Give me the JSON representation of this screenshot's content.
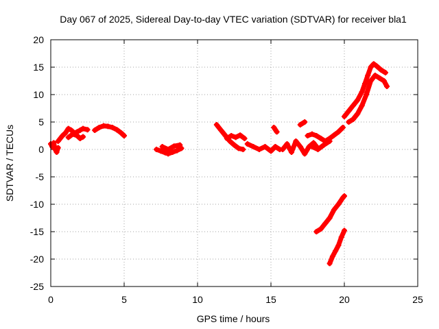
{
  "chart_data": {
    "type": "scatter",
    "title": "Day 067 of 2025, Sidereal Day-to-day VTEC variation (SDTVAR) for receiver bla1",
    "xlabel": "GPS time / hours",
    "ylabel": "SDTVAR / TECUs",
    "xlim": [
      0,
      25
    ],
    "ylim": [
      -25,
      20
    ],
    "xticks": [
      0,
      5,
      10,
      15,
      20,
      25
    ],
    "yticks": [
      -25,
      -20,
      -15,
      -10,
      -5,
      0,
      5,
      10,
      15,
      20
    ],
    "grid": true,
    "marker": "plus",
    "series": [
      {
        "name": "SDTVAR",
        "color": "#ff0000",
        "segments": [
          {
            "x": [
              0.0,
              0.1,
              0.2,
              0.3,
              0.4,
              0.5
            ],
            "y": [
              1.0,
              0.5,
              1.2,
              0.0,
              -0.5,
              0.3
            ]
          },
          {
            "x": [
              0.5,
              0.8,
              1.0,
              1.2,
              1.4,
              1.6,
              1.8,
              2.0,
              2.2,
              2.5
            ],
            "y": [
              1.5,
              2.5,
              3.0,
              3.8,
              3.5,
              3.0,
              3.2,
              3.5,
              3.8,
              3.6
            ]
          },
          {
            "x": [
              1.2,
              1.5,
              1.8,
              2.0,
              2.2
            ],
            "y": [
              2.2,
              2.8,
              2.5,
              2.0,
              2.3
            ]
          },
          {
            "x": [
              3.0,
              3.3,
              3.6,
              3.9,
              4.2,
              4.5,
              4.8,
              5.0
            ],
            "y": [
              3.5,
              4.0,
              4.3,
              4.2,
              4.0,
              3.6,
              3.0,
              2.5
            ]
          },
          {
            "x": [
              7.2,
              7.5,
              7.8,
              8.0,
              8.3,
              8.6,
              8.9
            ],
            "y": [
              0.0,
              -0.3,
              -0.6,
              -0.8,
              -0.5,
              -0.2,
              0.2
            ]
          },
          {
            "x": [
              7.6,
              8.0,
              8.4,
              8.8
            ],
            "y": [
              0.5,
              0.0,
              0.6,
              0.8
            ]
          },
          {
            "x": [
              11.3,
              11.6,
              11.9,
              12.2,
              12.5,
              12.8,
              13.1
            ],
            "y": [
              4.5,
              3.5,
              2.5,
              1.5,
              0.8,
              0.2,
              0.0
            ]
          },
          {
            "x": [
              12.0,
              12.3,
              12.6,
              12.9,
              13.2
            ],
            "y": [
              2.0,
              2.5,
              2.2,
              2.6,
              2.0
            ]
          },
          {
            "x": [
              13.4,
              13.8,
              14.2,
              14.6,
              15.0,
              15.3,
              15.6
            ],
            "y": [
              1.0,
              0.5,
              0.0,
              0.5,
              -0.3,
              0.5,
              0.0
            ]
          },
          {
            "x": [
              15.2,
              15.4
            ],
            "y": [
              4.0,
              3.2
            ]
          },
          {
            "x": [
              15.8,
              16.1,
              16.4,
              16.7,
              17.0,
              17.3,
              17.6,
              17.9,
              18.2
            ],
            "y": [
              0.0,
              1.0,
              -0.5,
              1.5,
              0.5,
              -0.8,
              0.5,
              1.2,
              0.2
            ]
          },
          {
            "x": [
              17.0,
              17.3
            ],
            "y": [
              4.5,
              5.0
            ]
          },
          {
            "x": [
              17.5,
              17.8,
              18.1,
              18.4,
              18.7,
              19.0,
              19.3,
              19.6,
              19.9
            ],
            "y": [
              2.5,
              2.8,
              2.5,
              2.0,
              1.5,
              2.0,
              2.6,
              3.2,
              4.0
            ]
          },
          {
            "x": [
              17.8,
              18.2,
              18.6,
              19.0
            ],
            "y": [
              0.5,
              0.0,
              0.8,
              1.5
            ]
          },
          {
            "x": [
              20.0,
              20.3,
              20.6,
              20.9,
              21.2,
              21.4,
              21.6,
              21.8,
              22.0,
              22.2,
              22.5,
              22.8
            ],
            "y": [
              6.0,
              7.0,
              8.0,
              9.0,
              10.5,
              12.0,
              13.5,
              15.0,
              15.6,
              15.2,
              14.5,
              14.0
            ]
          },
          {
            "x": [
              20.3,
              20.6,
              20.9,
              21.2,
              21.5,
              21.8,
              22.1,
              22.4,
              22.7,
              22.9
            ],
            "y": [
              5.0,
              5.5,
              6.5,
              8.0,
              10.0,
              12.5,
              13.5,
              13.0,
              12.5,
              11.5
            ]
          },
          {
            "x": [
              18.1,
              18.4,
              18.7,
              19.0,
              19.3,
              19.6,
              19.9,
              20.0
            ],
            "y": [
              -15.0,
              -14.5,
              -13.5,
              -12.5,
              -11.0,
              -10.0,
              -8.8,
              -8.5
            ]
          },
          {
            "x": [
              19.0,
              19.2,
              19.4,
              19.6,
              19.8,
              20.0
            ],
            "y": [
              -20.8,
              -19.5,
              -18.5,
              -17.5,
              -16.0,
              -14.8
            ]
          }
        ]
      }
    ]
  }
}
